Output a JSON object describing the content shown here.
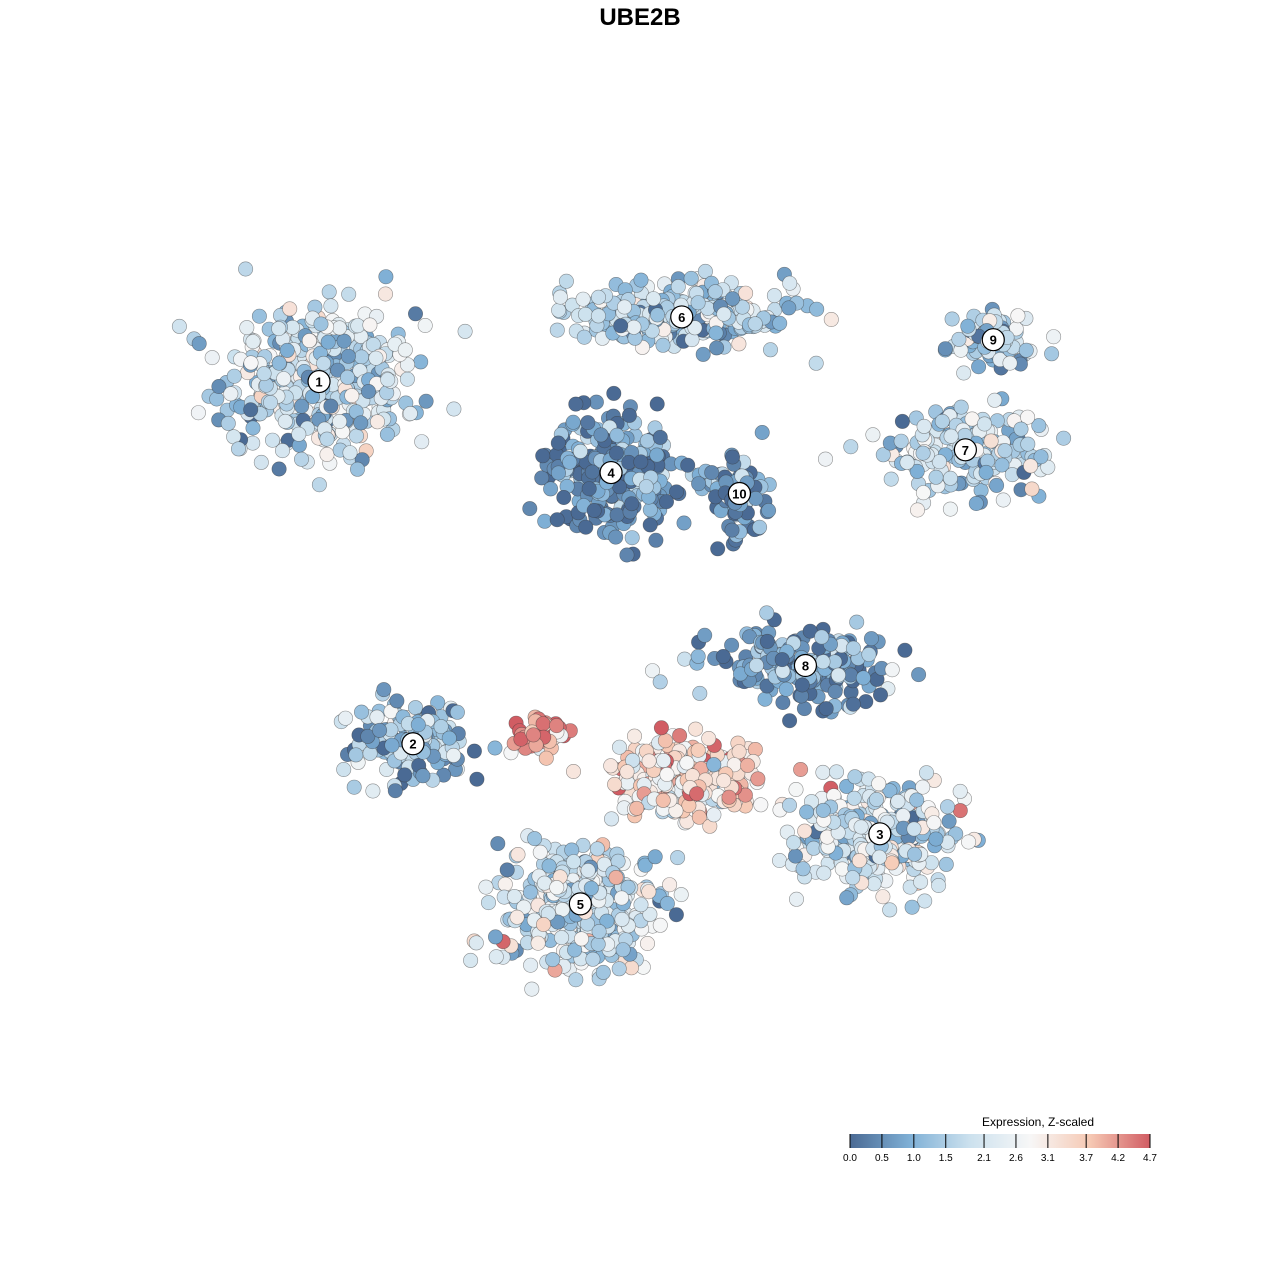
{
  "chart_data": {
    "type": "scatter",
    "title": "UBE2B",
    "xlabel": "",
    "ylabel": "",
    "grid": false,
    "xlim": [
      0,
      100
    ],
    "ylim": [
      0,
      100
    ],
    "legend": {
      "title": "Expression, Z-scaled",
      "placement": "bottom-right",
      "ticks": [
        "0.0",
        "0.5",
        "1.0",
        "1.5",
        "2.1",
        "2.6",
        "3.1",
        "3.7",
        "4.2",
        "4.7"
      ],
      "range": [
        0.0,
        4.7
      ],
      "colors": [
        "#4a6a94",
        "#7fb0d6",
        "#cce1ee",
        "#f7f7f7",
        "#f6c9b4",
        "#d15c63"
      ]
    },
    "clusters": [
      {
        "label": "1",
        "x": 12.8,
        "y": 78.4,
        "spread_x": 9.5,
        "spread_y": 7.5,
        "mean_expression": 1.8,
        "n_points": 420
      },
      {
        "label": "2",
        "x": 22.9,
        "y": 38.6,
        "spread_x": 5.5,
        "spread_y": 4.5,
        "mean_expression": 1.1,
        "n_points": 170
      },
      {
        "label": "3",
        "x": 73.1,
        "y": 28.7,
        "spread_x": 8.0,
        "spread_y": 5.5,
        "mean_expression": 2.1,
        "n_points": 330
      },
      {
        "label": "4",
        "x": 44.2,
        "y": 68.4,
        "spread_x": 6.0,
        "spread_y": 5.5,
        "mean_expression": 0.55,
        "n_points": 300
      },
      {
        "label": "5",
        "x": 40.9,
        "y": 21.0,
        "spread_x": 8.0,
        "spread_y": 6.5,
        "mean_expression": 1.9,
        "n_points": 380
      },
      {
        "label": "6",
        "x": 51.8,
        "y": 85.5,
        "spread_x": 11.0,
        "spread_y": 3.0,
        "mean_expression": 1.6,
        "n_points": 300
      },
      {
        "label": "7",
        "x": 82.3,
        "y": 70.9,
        "spread_x": 8.0,
        "spread_y": 4.0,
        "mean_expression": 1.7,
        "n_points": 190
      },
      {
        "label": "8",
        "x": 65.1,
        "y": 47.2,
        "spread_x": 8.5,
        "spread_y": 3.5,
        "mean_expression": 0.6,
        "n_points": 200
      },
      {
        "label": "9",
        "x": 85.3,
        "y": 83.0,
        "spread_x": 4.5,
        "spread_y": 2.5,
        "mean_expression": 1.5,
        "n_points": 90
      },
      {
        "label": "10",
        "x": 58.0,
        "y": 66.1,
        "spread_x": 3.0,
        "spread_y": 4.0,
        "mean_expression": 0.5,
        "n_points": 90
      },
      {
        "label": "",
        "x": 52.0,
        "y": 35.0,
        "spread_x": 7.0,
        "spread_y": 4.0,
        "mean_expression": 3.2,
        "n_points": 260
      },
      {
        "label": "",
        "x": 36.5,
        "y": 39.5,
        "spread_x": 2.5,
        "spread_y": 2.0,
        "mean_expression": 4.2,
        "n_points": 45
      }
    ]
  }
}
